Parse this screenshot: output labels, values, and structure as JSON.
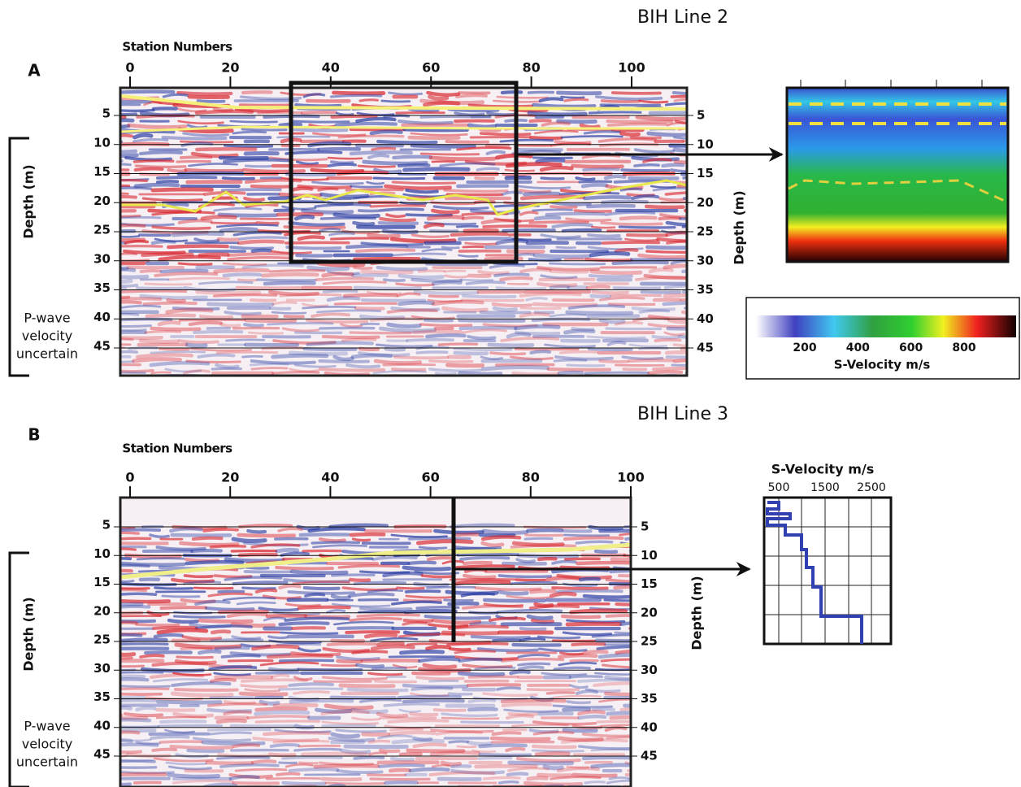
{
  "panels": [
    {
      "label": "A",
      "title": "BIH Line 2",
      "x_axis_label": "Station Numbers",
      "xticks": [
        0,
        20,
        40,
        60,
        80,
        100
      ],
      "depth_label": "Depth (m)",
      "yticks": [
        5,
        10,
        15,
        20,
        25,
        30,
        35,
        40,
        45
      ],
      "note": [
        "P-wave",
        "velocity",
        "uncertain"
      ],
      "inset": {
        "colorbar_ticks": [
          200,
          400,
          600,
          800
        ],
        "label": "S-Velocity m/s"
      }
    },
    {
      "label": "B",
      "title": "BIH Line 3",
      "x_axis_label": "Station Numbers",
      "xticks": [
        0,
        20,
        40,
        60,
        80,
        100
      ],
      "depth_label": "Depth (m)",
      "yticks": [
        5,
        10,
        15,
        20,
        25,
        30,
        35,
        40,
        45
      ],
      "note": [
        "P-wave",
        "velocity",
        "uncertain"
      ],
      "inset": {
        "label": "S-Velocity m/s",
        "ticks": [
          500,
          1500,
          2500
        ]
      }
    }
  ]
}
